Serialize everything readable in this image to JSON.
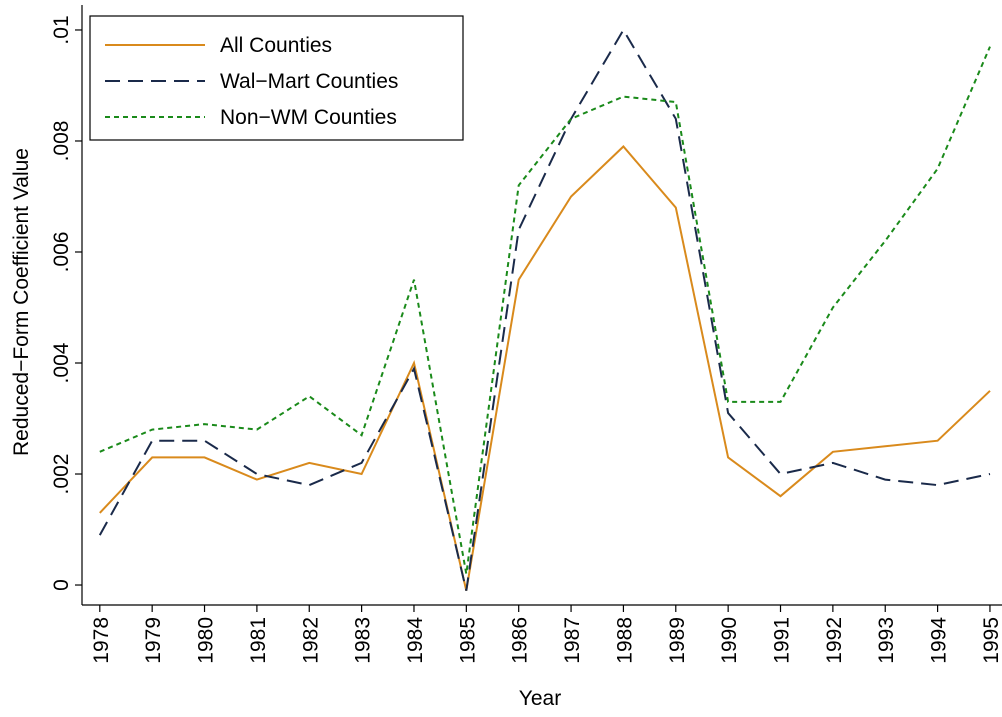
{
  "chart_data": {
    "type": "line",
    "x_label": "Year",
    "y_label": "Reduced−Form Coefficient Value",
    "x": [
      1978,
      1979,
      1980,
      1981,
      1982,
      1983,
      1984,
      1985,
      1986,
      1987,
      1988,
      1989,
      1990,
      1991,
      1992,
      1993,
      1994,
      1995
    ],
    "series": [
      {
        "name": "All Counties",
        "color": "#d98a1c",
        "dash": "solid",
        "values": [
          0.0013,
          0.0023,
          0.0023,
          0.0019,
          0.0022,
          0.002,
          0.004,
          -0.0001,
          0.0055,
          0.007,
          0.0079,
          0.0068,
          0.0023,
          0.0016,
          0.0024,
          0.0025,
          0.0026,
          0.0035
        ]
      },
      {
        "name": "Wal−Mart Counties",
        "color": "#1a2a4a",
        "dash": "long",
        "values": [
          0.0009,
          0.0026,
          0.0026,
          0.002,
          0.0018,
          0.0022,
          0.0039,
          -0.0001,
          0.0064,
          0.0084,
          0.01,
          0.0084,
          0.0031,
          0.002,
          0.0022,
          0.0019,
          0.0018,
          0.002
        ]
      },
      {
        "name": "Non−WM Counties",
        "color": "#1a8a1a",
        "dash": "short",
        "values": [
          0.0024,
          0.0028,
          0.0029,
          0.0028,
          0.0034,
          0.0027,
          0.0055,
          0.0002,
          0.0072,
          0.0084,
          0.0088,
          0.0087,
          0.0033,
          0.0033,
          0.005,
          0.0062,
          0.0075,
          0.0097
        ]
      }
    ],
    "xlim": [
      1977.66,
      1995.23
    ],
    "xticks": [
      1978,
      1979,
      1980,
      1981,
      1982,
      1983,
      1984,
      1985,
      1986,
      1987,
      1988,
      1989,
      1990,
      1991,
      1992,
      1993,
      1994,
      1995
    ],
    "ylim": [
      -0.00036,
      0.01045
    ],
    "yticks": [
      0,
      {
        "value": 0.002,
        "label": ".002"
      },
      {
        "value": 0.004,
        "label": ".004"
      },
      {
        "value": 0.006,
        "label": ".006"
      },
      {
        "value": 0.008,
        "label": ".008"
      },
      {
        "value": 0.01,
        "label": ".01"
      }
    ],
    "legend": "top-left"
  }
}
